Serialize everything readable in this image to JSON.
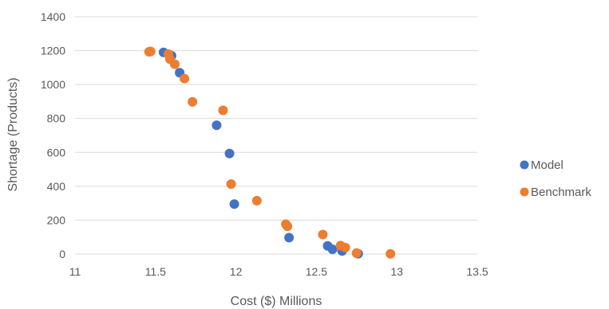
{
  "chart_data": {
    "type": "scatter",
    "title": "",
    "xlabel": "Cost ($) Millions",
    "ylabel": "Shortage (Products)",
    "xlim": [
      11,
      13.5
    ],
    "ylim": [
      0,
      1400
    ],
    "xticks": [
      11,
      11.5,
      12,
      12.5,
      13,
      13.5
    ],
    "yticks": [
      0,
      200,
      400,
      600,
      800,
      1000,
      1200,
      1400
    ],
    "xtick_labels": [
      "11",
      "11.5",
      "12",
      "12.5",
      "13",
      "13.5"
    ],
    "ytick_labels": [
      "0",
      "200",
      "400",
      "600",
      "800",
      "1000",
      "1200",
      "1400"
    ],
    "grid": "horizontal",
    "legend_position": "right",
    "series": [
      {
        "name": "Model",
        "color": "#4472C4",
        "points": [
          [
            11.55,
            1190
          ],
          [
            11.6,
            1170
          ],
          [
            11.65,
            1070
          ],
          [
            11.88,
            760
          ],
          [
            11.96,
            593
          ],
          [
            11.99,
            295
          ],
          [
            12.33,
            97
          ],
          [
            12.57,
            48
          ],
          [
            12.6,
            28
          ],
          [
            12.66,
            18
          ],
          [
            12.75,
            5
          ],
          [
            12.76,
            2
          ]
        ]
      },
      {
        "name": "Benchmark",
        "color": "#ED7D31",
        "points": [
          [
            11.46,
            1193
          ],
          [
            11.47,
            1195
          ],
          [
            11.58,
            1180
          ],
          [
            11.59,
            1150
          ],
          [
            11.62,
            1120
          ],
          [
            11.68,
            1035
          ],
          [
            11.73,
            898
          ],
          [
            11.92,
            848
          ],
          [
            11.97,
            413
          ],
          [
            12.13,
            315
          ],
          [
            12.31,
            176
          ],
          [
            12.32,
            164
          ],
          [
            12.54,
            115
          ],
          [
            12.65,
            50
          ],
          [
            12.68,
            38
          ],
          [
            12.75,
            6
          ],
          [
            12.96,
            1
          ]
        ]
      }
    ]
  }
}
